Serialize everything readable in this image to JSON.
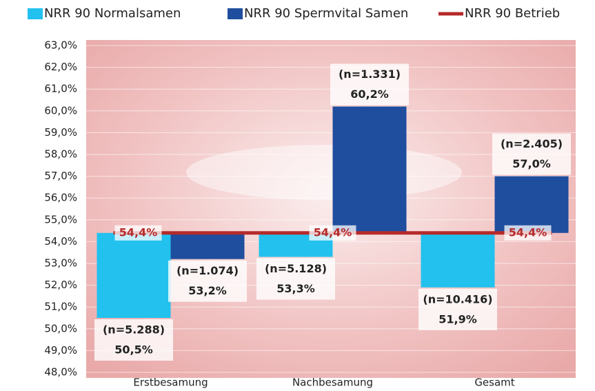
{
  "chart_data": {
    "type": "bar",
    "categories": [
      "Erstbesamung",
      "Nachbesamung",
      "Gesamt"
    ],
    "series": [
      {
        "name": "NRR 90 Normalsamen",
        "color": "#22c1ee",
        "values": [
          50.5,
          53.3,
          51.9
        ],
        "value_labels": [
          "50,5%",
          "53,3%",
          "51,9%"
        ],
        "n_labels": [
          "(n=5.288)",
          "(n=5.128)",
          "(n=10.416)"
        ]
      },
      {
        "name": "NRR 90 Spermvital Samen",
        "color": "#1f4e9e",
        "values": [
          53.2,
          60.2,
          57.0
        ],
        "value_labels": [
          "53,2%",
          "60,2%",
          "57,0%"
        ],
        "n_labels": [
          "(n=1.074)",
          "(n=1.331)",
          "(n=2.405)"
        ]
      },
      {
        "name": "NRR 90 Betrieb",
        "type": "line",
        "color": "#b52a2a",
        "values": [
          54.4,
          54.4,
          54.4
        ],
        "value_labels": [
          "54,4%",
          "54,4%",
          "54,4%"
        ]
      }
    ],
    "ylim": [
      48,
      63
    ],
    "yticks": [
      {
        "value": 48,
        "label": "48,0%"
      },
      {
        "value": 49,
        "label": "49,0%"
      },
      {
        "value": 50,
        "label": "50,0%"
      },
      {
        "value": 51,
        "label": "51,0%"
      },
      {
        "value": 52,
        "label": "52,0%"
      },
      {
        "value": 53,
        "label": "53,0%"
      },
      {
        "value": 54,
        "label": "54,0%"
      },
      {
        "value": 55,
        "label": "55,0%"
      },
      {
        "value": 56,
        "label": "56,0%"
      },
      {
        "value": 57,
        "label": "57,0%"
      },
      {
        "value": 58,
        "label": "58,0%"
      },
      {
        "value": 59,
        "label": "59,0%"
      },
      {
        "value": 60,
        "label": "60,0%"
      },
      {
        "value": 61,
        "label": "61,0%"
      },
      {
        "value": 62,
        "label": "62,0%"
      },
      {
        "value": 63,
        "label": "63,0%"
      }
    ],
    "grid": true
  }
}
